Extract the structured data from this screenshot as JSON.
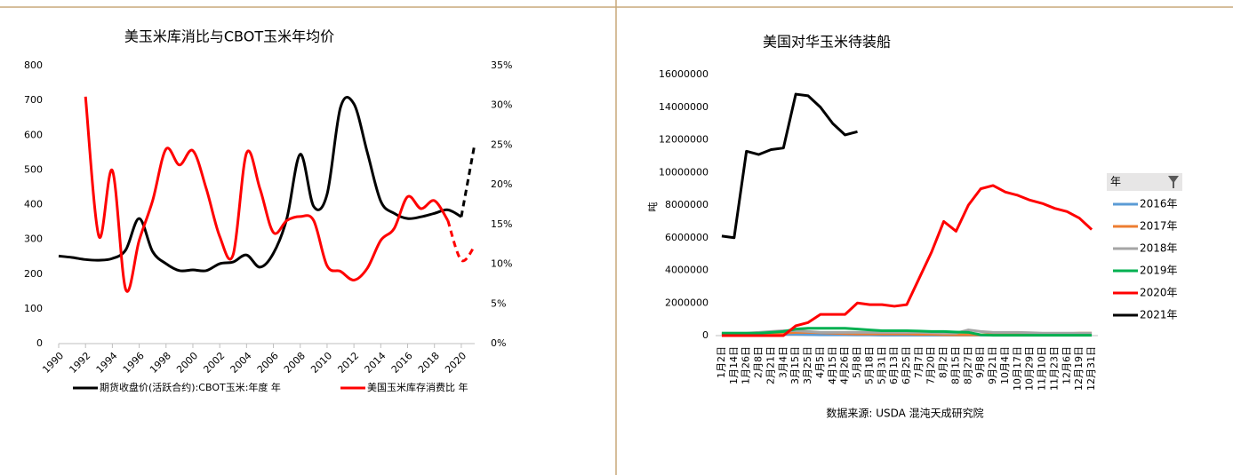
{
  "chart_data": [
    {
      "type": "line",
      "title": "美玉米库消比与CBOT玉米年均价",
      "smooth": true,
      "legend": "bottom",
      "x": [
        1990,
        1991,
        1992,
        1993,
        1994,
        1995,
        1996,
        1997,
        1998,
        1999,
        2000,
        2001,
        2002,
        2003,
        2004,
        2005,
        2006,
        2007,
        2008,
        2009,
        2010,
        2011,
        2012,
        2013,
        2014,
        2015,
        2016,
        2017,
        2018,
        2019,
        2020,
        2021
      ],
      "xlim": [
        1990,
        2021
      ],
      "xticks": [
        1990,
        1992,
        1994,
        1996,
        1998,
        2000,
        2002,
        2004,
        2006,
        2008,
        2010,
        2012,
        2014,
        2016,
        2018,
        2020
      ],
      "ylim": [
        0,
        800
      ],
      "yticks": [
        0,
        100,
        200,
        300,
        400,
        500,
        600,
        700,
        800
      ],
      "y2lim": [
        0,
        35
      ],
      "y2ticks": [
        {
          "value": 0,
          "label": "0%"
        },
        {
          "value": 5,
          "label": "5%"
        },
        {
          "value": 10,
          "label": "10%"
        },
        {
          "value": 15,
          "label": "15%"
        },
        {
          "value": 20,
          "label": "20%"
        },
        {
          "value": 25,
          "label": "25%"
        },
        {
          "value": 30,
          "label": "30%"
        },
        {
          "value": 35,
          "label": "35%"
        }
      ],
      "series": [
        {
          "name": "期货收盘价(活跃合约):CBOT玉米:年度 年",
          "color": "#000000",
          "dashed_from": 2020,
          "values": [
            252,
            248,
            242,
            240,
            245,
            270,
            360,
            265,
            230,
            210,
            212,
            210,
            230,
            235,
            255,
            220,
            260,
            360,
            545,
            395,
            430,
            680,
            690,
            550,
            410,
            375,
            360,
            365,
            375,
            385,
            365,
            575
          ]
        },
        {
          "name": "美国玉米库存消费比 年",
          "color": "#ff0000",
          "axis": "y2",
          "dashed_from": 2019,
          "values": [
            null,
            null,
            31.1,
            13.5,
            21.8,
            6.8,
            13,
            18,
            24.5,
            22.5,
            24.3,
            19.5,
            13.5,
            11.2,
            24,
            19.5,
            14,
            15.5,
            16,
            15.5,
            9.8,
            9.1,
            8,
            9.5,
            13,
            14.5,
            18.5,
            17,
            18,
            15.5,
            10.5,
            12.3
          ]
        }
      ]
    },
    {
      "type": "line",
      "title": "美国对华玉米待装船",
      "smooth": false,
      "legend": "right",
      "legend_title": "年",
      "y_label": "吨",
      "source": "数据来源: USDA 混沌天成研究院",
      "categories": [
        "1月2日",
        "1月14日",
        "1月26日",
        "2月8日",
        "2月21日",
        "3月4日",
        "3月15日",
        "3月25日",
        "4月5日",
        "4月15日",
        "4月26日",
        "5月8日",
        "5月18日",
        "5月31日",
        "6月13日",
        "6月25日",
        "7月7日",
        "7月20日",
        "8月2日",
        "8月15日",
        "8月27日",
        "9月8日",
        "9月21日",
        "10月4日",
        "10月17日",
        "10月29日",
        "11月10日",
        "11月23日",
        "12月6日",
        "12月19日",
        "12月31日"
      ],
      "ylim": [
        0,
        16000000
      ],
      "yticks": [
        0,
        2000000,
        4000000,
        6000000,
        8000000,
        10000000,
        12000000,
        14000000,
        16000000
      ],
      "series": [
        {
          "name": "2016年",
          "color": "#5b9bd5",
          "values": [
            80000,
            80000,
            80000,
            80000,
            80000,
            80000,
            80000,
            60000,
            50000,
            50000,
            50000,
            40000,
            40000,
            30000,
            30000,
            30000,
            30000,
            30000,
            30000,
            30000,
            30000,
            30000,
            30000,
            30000,
            30000,
            30000,
            30000,
            30000,
            30000,
            30000,
            30000
          ]
        },
        {
          "name": "2017年",
          "color": "#ed7d31",
          "values": [
            100000,
            100000,
            100000,
            100000,
            120000,
            150000,
            200000,
            200000,
            180000,
            150000,
            120000,
            100000,
            100000,
            100000,
            100000,
            100000,
            80000,
            80000,
            60000,
            50000,
            50000,
            50000,
            80000,
            100000,
            100000,
            100000,
            120000,
            120000,
            120000,
            150000,
            150000
          ]
        },
        {
          "name": "2018年",
          "color": "#a5a5a5",
          "values": [
            150000,
            150000,
            150000,
            200000,
            250000,
            300000,
            300000,
            250000,
            200000,
            200000,
            200000,
            200000,
            200000,
            200000,
            200000,
            200000,
            200000,
            180000,
            150000,
            150000,
            350000,
            250000,
            200000,
            200000,
            200000,
            180000,
            150000,
            150000,
            150000,
            150000,
            150000
          ]
        },
        {
          "name": "2019年",
          "color": "#00b050",
          "values": [
            150000,
            150000,
            150000,
            150000,
            200000,
            250000,
            400000,
            450000,
            450000,
            450000,
            450000,
            400000,
            350000,
            300000,
            300000,
            300000,
            280000,
            250000,
            250000,
            220000,
            200000,
            50000,
            20000,
            20000,
            20000,
            20000,
            20000,
            20000,
            20000,
            20000,
            20000
          ]
        },
        {
          "name": "2020年",
          "color": "#ff0000",
          "values": [
            0,
            0,
            0,
            0,
            0,
            0,
            600000,
            800000,
            1300000,
            1300000,
            1300000,
            2000000,
            1900000,
            1900000,
            1800000,
            1900000,
            3500000,
            5100000,
            7000000,
            6400000,
            8000000,
            9000000,
            9200000,
            8800000,
            8600000,
            8300000,
            8100000,
            7800000,
            7600000,
            7200000,
            6500000
          ]
        },
        {
          "name": "2021年",
          "color": "#000000",
          "values": [
            6100000,
            6000000,
            11300000,
            11100000,
            11400000,
            11500000,
            14800000,
            14700000,
            14000000,
            13000000,
            12300000,
            12500000,
            null,
            null,
            null,
            null,
            null,
            null,
            null,
            null,
            null,
            null,
            null,
            null,
            null,
            null,
            null,
            null,
            null,
            null,
            null
          ]
        }
      ]
    }
  ]
}
